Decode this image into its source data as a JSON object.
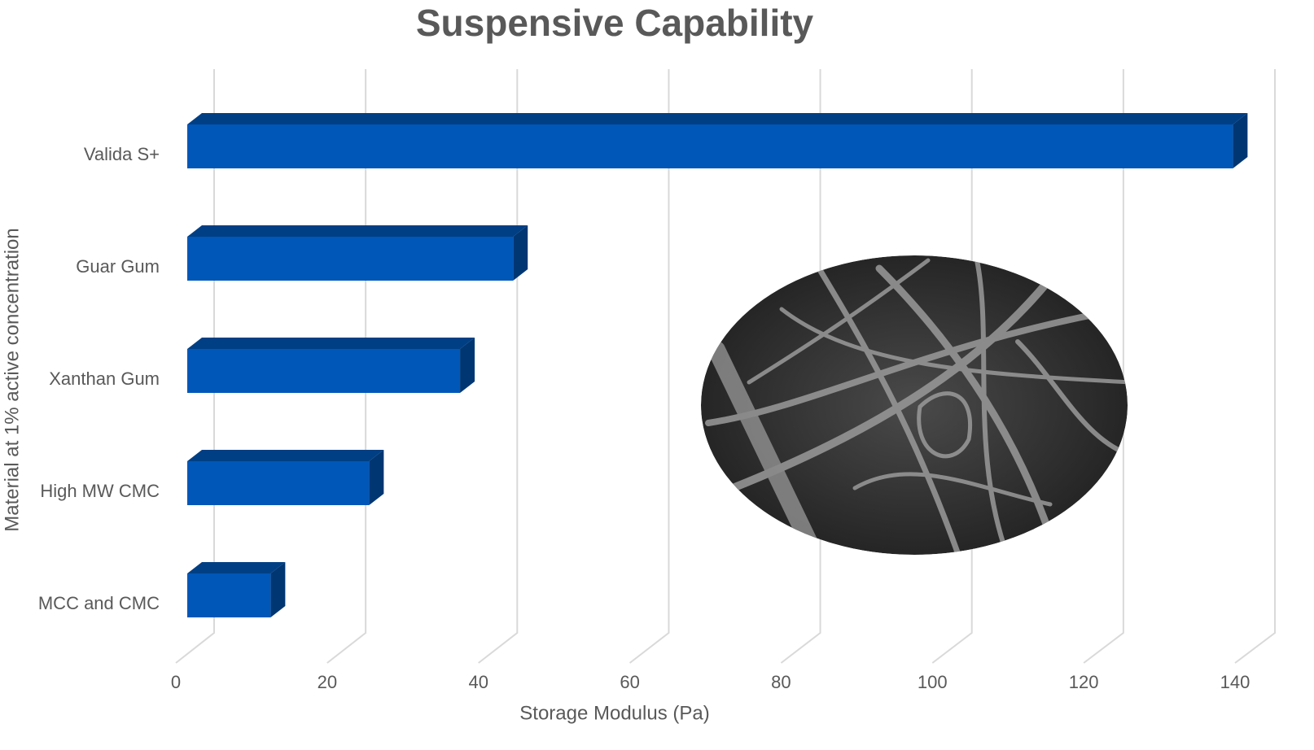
{
  "chart_data": {
    "type": "bar3d",
    "orientation": "horizontal",
    "title": "Suspensive Capability",
    "x_label": "Storage Modulus (Pa)",
    "y_label": "Material at 1% active concentration",
    "categories": [
      "Valida S+",
      "Guar Gum",
      "Xanthan Gum",
      "High MW CMC",
      "MCC and CMC"
    ],
    "values": [
      138,
      43,
      36,
      24,
      11
    ],
    "color": "#0057b8",
    "xlim": [
      0,
      140
    ],
    "xticks": [
      0,
      20,
      40,
      60,
      80,
      100,
      120,
      140
    ],
    "grid": true
  }
}
